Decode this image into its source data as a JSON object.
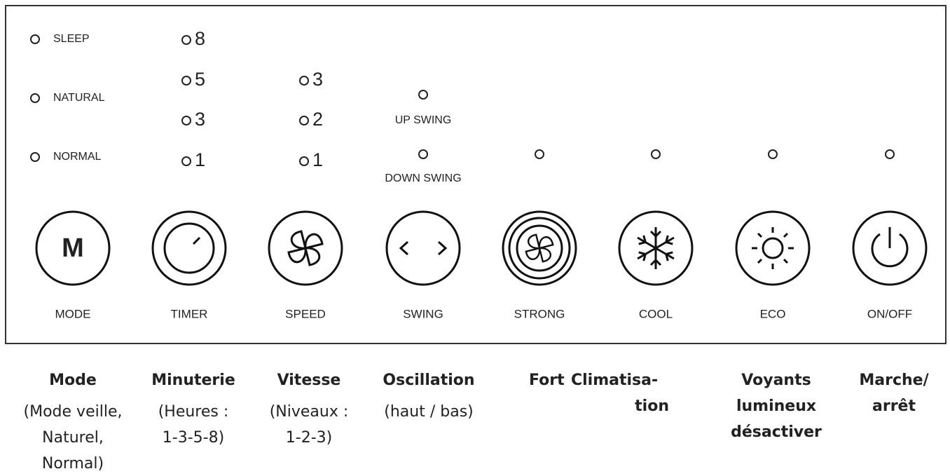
{
  "panel": {
    "mode_indicators": [
      "SLEEP",
      "NATURAL",
      "NORMAL"
    ],
    "timer_indicators": [
      "8",
      "5",
      "3",
      "1"
    ],
    "speed_indicators": [
      "3",
      "2",
      "1"
    ],
    "swing_indicators": [
      "UP  SWING",
      "DOWN  SWING"
    ],
    "mode_icon": "M",
    "buttons": [
      "MODE",
      "TIMER",
      "SPEED",
      "SWING",
      "STRONG",
      "COOL",
      "ECO",
      "ON/OFF"
    ]
  },
  "descriptions": [
    {
      "title": [
        "Mode"
      ],
      "detail": [
        "(Mode veille,",
        "Naturel,",
        "Normal)"
      ]
    },
    {
      "title": [
        "Minuterie"
      ],
      "detail": [
        "(Heures :",
        "1-3-5-8)"
      ]
    },
    {
      "title": [
        "Vitesse"
      ],
      "detail": [
        "(Niveaux :",
        "1-2-3)"
      ]
    },
    {
      "title": [
        "Oscillation"
      ],
      "detail": [
        "(haut / bas)"
      ]
    },
    {
      "title": [
        "Fort"
      ],
      "detail": []
    },
    {
      "title": [
        "Climatisa-",
        "tion"
      ],
      "detail": []
    },
    {
      "title": [
        "Voyants",
        "lumineux",
        "désactiver"
      ],
      "detail": []
    },
    {
      "title": [
        "Marche/",
        "arrêt"
      ],
      "detail": []
    }
  ]
}
